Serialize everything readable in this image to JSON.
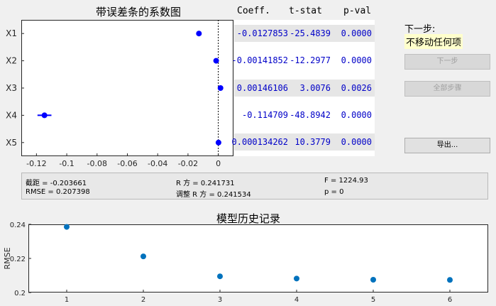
{
  "coef_plot": {
    "title": "带误差条的系数图",
    "row_labels": [
      "X1",
      "X2",
      "X3",
      "X4",
      "X5"
    ],
    "xlim": [
      -0.13,
      0.01
    ],
    "x_ticks": [
      "-0.12",
      "-0.1",
      "-0.08",
      "-0.06",
      "-0.04",
      "-0.02",
      "0"
    ],
    "x_tick_values": [
      -0.12,
      -0.1,
      -0.08,
      -0.06,
      -0.04,
      -0.02,
      0
    ],
    "estimates": [
      -0.0127853,
      -0.00141852,
      0.00146106,
      -0.114709,
      0.000134262
    ],
    "error_halfwidth": [
      0.001,
      0.0003,
      0.0009,
      0.0046,
      3e-05
    ],
    "marker_color": "#0000ff"
  },
  "coef_table": {
    "headers": [
      "Coeff.",
      "t-stat",
      "p-val"
    ],
    "rows": [
      {
        "coeff": "-0.0127853",
        "tstat": "-25.4839",
        "pval": "0.0000"
      },
      {
        "coeff": "-0.00141852",
        "tstat": "-12.2977",
        "pval": "0.0000"
      },
      {
        "coeff": "0.00146106",
        "tstat": "3.0076",
        "pval": "0.0026"
      },
      {
        "coeff": "-0.114709",
        "tstat": "-48.8942",
        "pval": "0.0000"
      },
      {
        "coeff": "0.000134262",
        "tstat": "10.3779",
        "pval": "0.0000"
      }
    ],
    "text_color": "#0000c8"
  },
  "next_step": {
    "title": "下一步:",
    "value": "不移动任何项"
  },
  "buttons": {
    "next_step": "下一步",
    "all_steps": "全部步骤",
    "export": "导出..."
  },
  "stats": {
    "intercept": "截距 = -0.203661",
    "rmse": "RMSE = 0.207398",
    "rsq": "R 方 = 0.241731",
    "adj_rsq": "调整 R 方 = 0.241534",
    "f": "F = 1224.93",
    "p": "p = 0"
  },
  "chart_data": {
    "type": "scatter",
    "title": "模型历史记录",
    "xlabel": "",
    "ylabel": "RMSE",
    "x": [
      1,
      2,
      3,
      4,
      5,
      6
    ],
    "y": [
      0.2385,
      0.2212,
      0.2095,
      0.2082,
      0.2075,
      0.2074
    ],
    "xlim": [
      0.5,
      6.5
    ],
    "ylim": [
      0.2,
      0.24
    ],
    "x_ticks": [
      "1",
      "2",
      "3",
      "4",
      "5",
      "6"
    ],
    "y_ticks": [
      "0.2",
      "0.22",
      "0.24"
    ],
    "y_tick_values": [
      0.2,
      0.22,
      0.24
    ],
    "marker_color": "#0072bd"
  }
}
